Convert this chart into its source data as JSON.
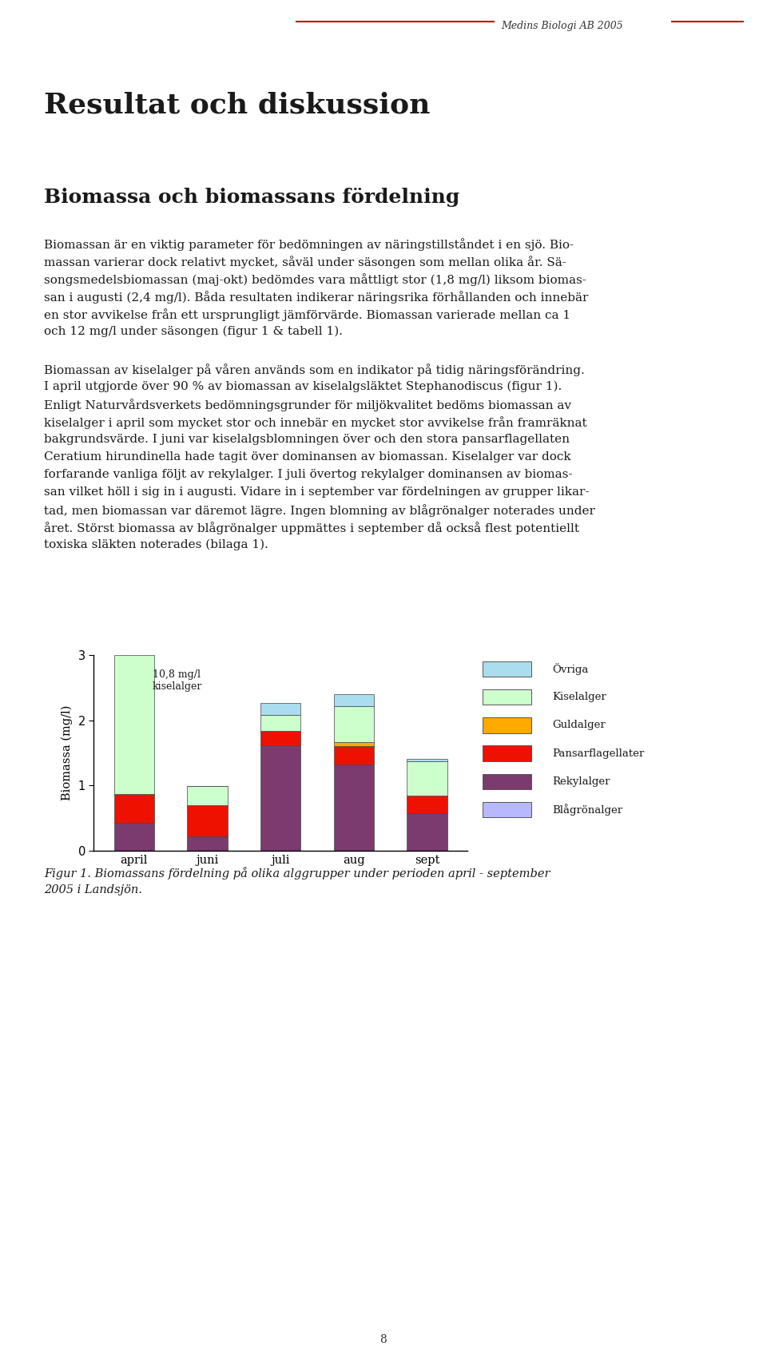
{
  "categories": [
    "april",
    "juni",
    "juli",
    "aug",
    "sept"
  ],
  "layers": [
    {
      "name": "Blågrönalger",
      "color": "#b8b8ff",
      "values": [
        0.0,
        0.0,
        0.0,
        0.0,
        0.0
      ]
    },
    {
      "name": "Rekylalger",
      "color": "#7b3b6e",
      "values": [
        0.43,
        0.22,
        1.62,
        1.32,
        0.57
      ]
    },
    {
      "name": "Pansarflagellater",
      "color": "#ee1100",
      "values": [
        0.44,
        0.48,
        0.22,
        0.28,
        0.28
      ]
    },
    {
      "name": "Guldalger",
      "color": "#ffaa00",
      "values": [
        0.0,
        0.0,
        0.0,
        0.06,
        0.0
      ]
    },
    {
      "name": "Kiselalger",
      "color": "#ccffcc",
      "values": [
        10.8,
        0.29,
        0.24,
        0.56,
        0.52
      ]
    },
    {
      "name": "Övriga",
      "color": "#aaddee",
      "values": [
        0.0,
        0.0,
        0.19,
        0.18,
        0.04
      ]
    }
  ],
  "ylabel": "Biomassa (mg/l)",
  "ylim": [
    0,
    3
  ],
  "yticks": [
    0,
    1,
    2,
    3
  ],
  "annotation_text": "10,8 mg/l\nkiselalger",
  "figure_caption_line1": "Figur 1. Biomassans fördelning på olika alggrupper under perioden april - september",
  "figure_caption_line2": "2005 i Landsjön.",
  "background_color": "#ffffff",
  "title_text": "Resultat och diskussion",
  "subtitle_text": "Biomassa och biomassans fördelning",
  "header_text": "Medins Biologi AB 2005",
  "body_para1_lines": [
    "Biomassan är en viktig parameter för bedömningen av näringstillståndet i en sjö. Bio-",
    "massan varierar dock relativt mycket, såväl under säsongen som mellan olika år. Sä-",
    "songsmedelsbiomassan (maj-okt) bedömdes vara måttligt stor (1,8 mg/l) liksom biomas-",
    "san i augusti (2,4 mg/l). Båda resultaten indikerar näringsrika förhållanden och innebär",
    "en stor avvikelse från ett ursprungligt jämförvärde. Biomassan varierade mellan ca 1",
    "och 12 mg/l under säsongen (figur 1 & tabell 1)."
  ],
  "body_para2_lines": [
    "Biomassan av kiselalger på våren används som en indikator på tidig näringsförändring.",
    "I april utgjorde över 90 % av biomassan av kiselalgsläktet Stephanodiscus (figur 1).",
    "Enligt Naturvårdsverkets bedömningsgrunder för miljökvalitet bedöms biomassan av",
    "kiselalger i april som mycket stor och innebär en mycket stor avvikelse från framräknat",
    "bakgrundsvärde. I juni var kiselalgsblomningen över och den stora pansarflagellaten",
    "Ceratium hirundinella hade tagit över dominansen av biomassan. Kiselalger var dock",
    "forfarande vanliga följt av rekylalger. I juli övertog rekylalger dominansen av biomas-",
    "san vilket höll i sig in i augusti. Vidare in i september var fördelningen av grupper likar-",
    "tad, men biomassan var däremot lägre. Ingen blomning av blågrönalger noterades under",
    "året. Störst biomassa av blågrönalger uppmättes i september då också flest potentiellt",
    "toxiska släkten noterades (bilaga 1)."
  ],
  "page_number": "8",
  "legend_items": [
    "Övriga",
    "Kiselalger",
    "Guldalger",
    "Pansarflagellater",
    "Rekylalger",
    "Blågrönalger"
  ],
  "legend_colors": [
    "#aaddee",
    "#ccffcc",
    "#ffaa00",
    "#ee1100",
    "#7b3b6e",
    "#b8b8ff"
  ]
}
